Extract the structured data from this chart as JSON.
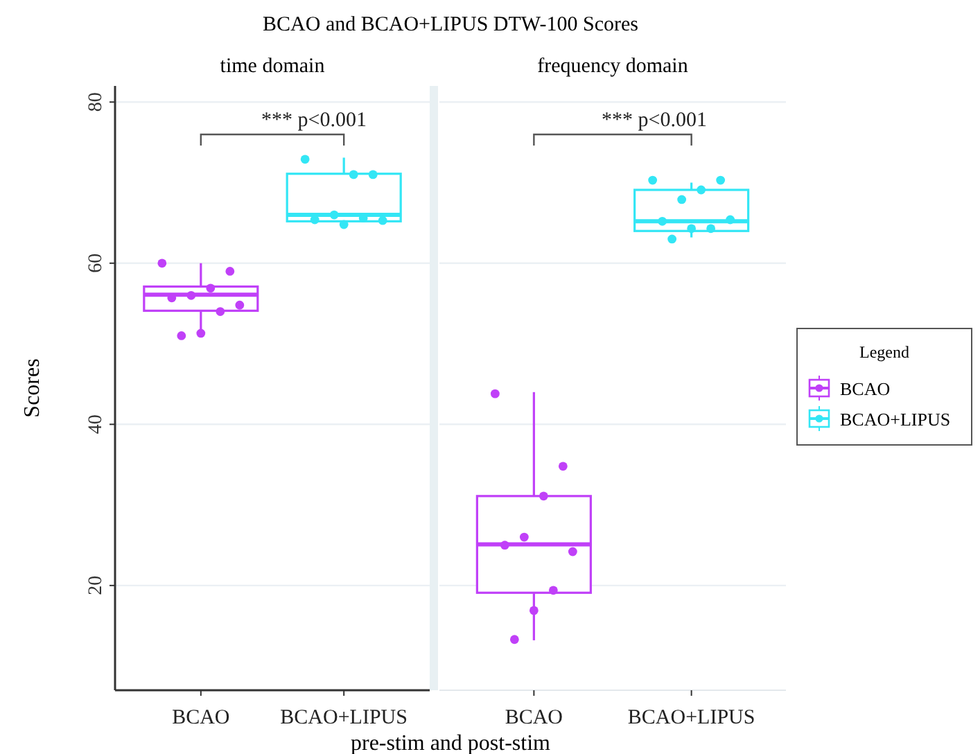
{
  "chart_data": [
    {
      "type": "box",
      "title": "BCAO and BCAO+LIPUS DTW-100 Scores",
      "subtitle": "time domain",
      "xlabel": "pre-stim and post-stim",
      "ylabel": "Scores",
      "categories": [
        "BCAO",
        "BCAO+LIPUS"
      ],
      "ylim": [
        7,
        82
      ],
      "yticks": [
        20,
        40,
        60,
        80
      ],
      "grid": "y",
      "tick_labels": "xy",
      "annotations": [
        "*** p<0.001"
      ],
      "series": [
        {
          "type": "box",
          "color": "#c040f8",
          "boxes": [
            {
              "low": 51.1,
              "q1": 54.1,
              "median": 56.1,
              "q3": 57.1,
              "high": 60.0
            },
            null
          ]
        },
        {
          "type": "box",
          "color": "#33e6f5",
          "boxes": [
            null,
            {
              "low": 64.8,
              "q1": 65.2,
              "median": 66.0,
              "q3": 71.1,
              "high": 73.1
            }
          ]
        },
        {
          "type": "scatter",
          "color": "#c040f8",
          "marker": "circle",
          "x": [
            "BCAO",
            "BCAO",
            "BCAO",
            "BCAO",
            "BCAO",
            "BCAO",
            "BCAO",
            "BCAO",
            "BCAO"
          ],
          "values": [
            60.0,
            59.0,
            56.9,
            56.0,
            55.7,
            54.8,
            54.0,
            51.3,
            51.0
          ]
        },
        {
          "type": "scatter",
          "color": "#33e6f5",
          "marker": "circle",
          "x": [
            "BCAO+LIPUS",
            "BCAO+LIPUS",
            "BCAO+LIPUS",
            "BCAO+LIPUS",
            "BCAO+LIPUS",
            "BCAO+LIPUS",
            "BCAO+LIPUS",
            "BCAO+LIPUS"
          ],
          "values": [
            72.9,
            71.0,
            71.0,
            66.0,
            65.4,
            65.3,
            65.6,
            64.8
          ]
        }
      ]
    },
    {
      "type": "box",
      "subtitle": "frequency domain",
      "categories": [
        "BCAO",
        "BCAO+LIPUS"
      ],
      "ylim": [
        7,
        82
      ],
      "yticks": [
        20,
        40,
        60,
        80
      ],
      "grid": "y",
      "tick_labels": "x",
      "legend": "right",
      "legend_title": "Legend",
      "annotations": [
        "*** p<0.001"
      ],
      "series": [
        {
          "name": "BCAO",
          "type": "box",
          "color": "#c040f8",
          "boxes": [
            {
              "low": 13.2,
              "q1": 19.1,
              "median": 25.1,
              "q3": 31.1,
              "high": 44.0
            },
            null
          ]
        },
        {
          "name": "BCAO+LIPUS",
          "type": "box",
          "color": "#33e6f5",
          "boxes": [
            null,
            {
              "low": 63.2,
              "q1": 64.0,
              "median": 65.2,
              "q3": 69.1,
              "high": 70.0
            }
          ]
        },
        {
          "type": "scatter",
          "color": "#c040f8",
          "marker": "circle",
          "x": [
            "BCAO",
            "BCAO",
            "BCAO",
            "BCAO",
            "BCAO",
            "BCAO",
            "BCAO",
            "BCAO",
            "BCAO"
          ],
          "values": [
            43.8,
            34.8,
            31.1,
            26.0,
            25.0,
            24.2,
            19.4,
            16.9,
            13.3
          ]
        },
        {
          "type": "scatter",
          "color": "#33e6f5",
          "marker": "circle",
          "x": [
            "BCAO+LIPUS",
            "BCAO+LIPUS",
            "BCAO+LIPUS",
            "BCAO+LIPUS",
            "BCAO+LIPUS",
            "BCAO+LIPUS",
            "BCAO+LIPUS",
            "BCAO+LIPUS",
            "BCAO+LIPUS"
          ],
          "values": [
            70.3,
            70.3,
            69.1,
            67.9,
            65.2,
            65.4,
            64.3,
            64.3,
            63.0
          ]
        }
      ]
    }
  ]
}
